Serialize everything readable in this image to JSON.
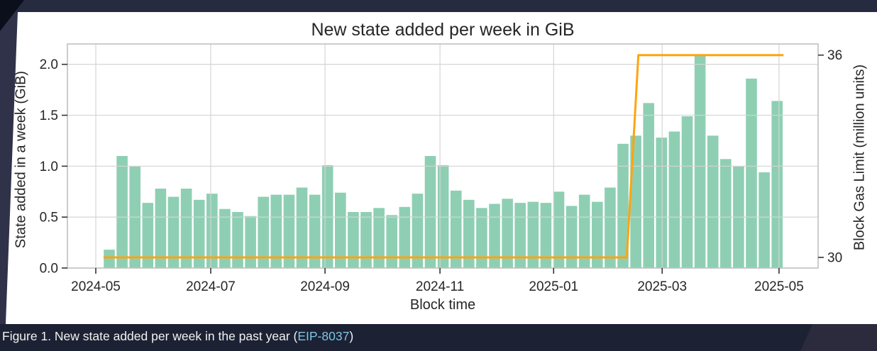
{
  "caption": {
    "prefix": "Figure 1. New state added per week in the past year (",
    "link": "EIP-8037",
    "suffix": ")"
  },
  "colors": {
    "bar": "#8ecfb3",
    "line": "#ffa40d",
    "grid": "#d4d4d4",
    "spine": "#bfbfbf",
    "tick_text": "#262626",
    "panel": "#ffffff",
    "slide_background": "#30324a",
    "caption_band": "#1c2133",
    "caption_link": "#7cc5e5"
  },
  "chart_data": {
    "type": "bar",
    "title": "New state added per week in GiB",
    "xlabel": "Block time",
    "ylabel_left": "State added in a week (GiB)",
    "ylabel_right": "Block Gas Limit (million units)",
    "grid": "on",
    "bar_series": {
      "name": "State added in a week (GiB)",
      "unit": "GiB per week, one bar per week",
      "values": [
        0.18,
        1.1,
        1.0,
        0.64,
        0.78,
        0.7,
        0.78,
        0.67,
        0.73,
        0.58,
        0.55,
        0.51,
        0.7,
        0.72,
        0.72,
        0.79,
        0.72,
        1.01,
        0.74,
        0.55,
        0.55,
        0.59,
        0.52,
        0.6,
        0.73,
        1.1,
        1.01,
        0.76,
        0.67,
        0.59,
        0.63,
        0.68,
        0.64,
        0.65,
        0.64,
        0.75,
        0.61,
        0.72,
        0.65,
        0.79,
        1.22,
        1.3,
        1.62,
        1.28,
        1.34,
        1.49,
        2.09,
        1.3,
        1.07,
        1.0,
        1.86,
        0.94,
        1.64
      ]
    },
    "line_series": {
      "name": "Block Gas Limit (million units)",
      "points_week_vs_limit": [
        [
          -0.45,
          30
        ],
        [
          40.3,
          30
        ],
        [
          41.2,
          36
        ],
        [
          52.5,
          36
        ]
      ]
    },
    "x_ticks": [
      {
        "pos": -1.05,
        "label": "2024-05"
      },
      {
        "pos": 7.9,
        "label": "2024-07"
      },
      {
        "pos": 16.8,
        "label": "2024-09"
      },
      {
        "pos": 25.75,
        "label": "2024-11"
      },
      {
        "pos": 34.6,
        "label": "2025-01"
      },
      {
        "pos": 43.05,
        "label": "2025-03"
      },
      {
        "pos": 52.15,
        "label": "2025-05"
      }
    ],
    "y_left": {
      "ticks": [
        0.0,
        0.5,
        1.0,
        1.5,
        2.0
      ],
      "min": 0,
      "max": 2.2
    },
    "y_right": {
      "ticks": [
        30,
        36
      ],
      "min": 29.69,
      "max": 36.33
    }
  }
}
